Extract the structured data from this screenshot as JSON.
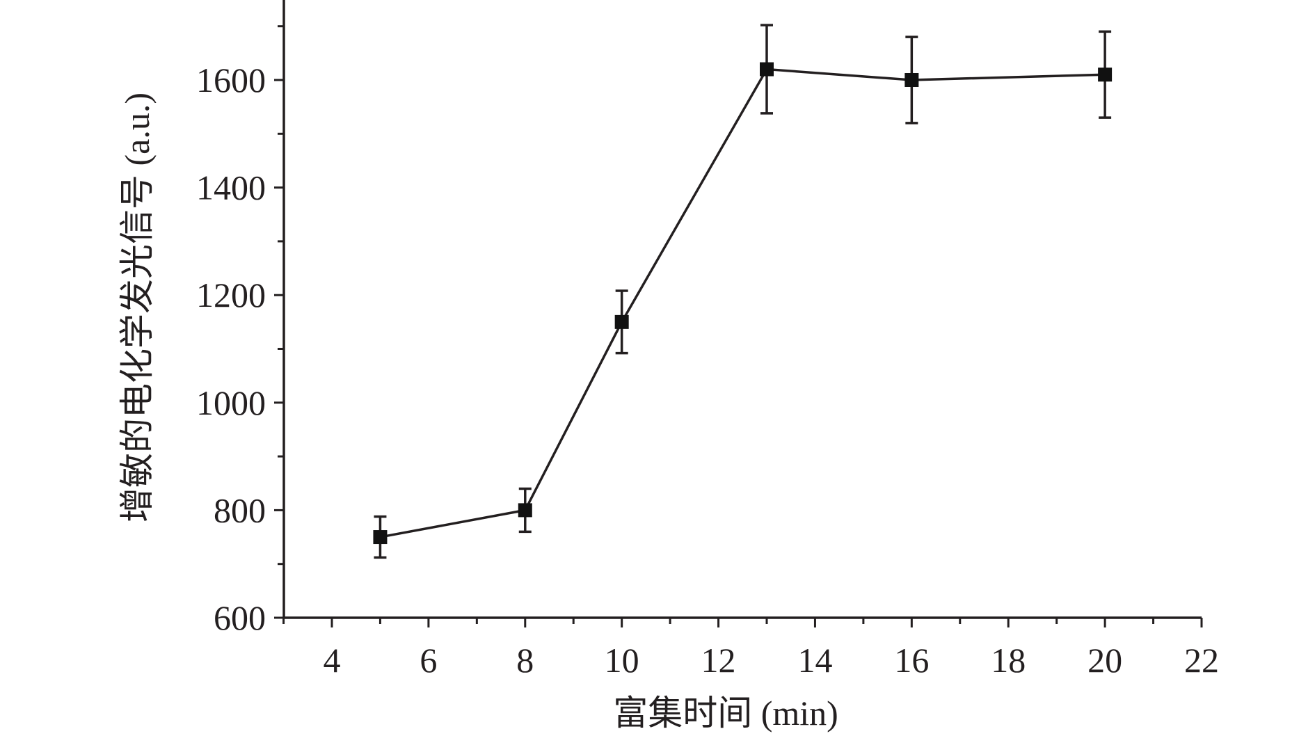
{
  "chart_data": {
    "type": "line",
    "xlabel": "富集时间 (min)",
    "ylabel": "增敏的电化学发光信号 (a.u.)",
    "xlim": [
      3,
      22
    ],
    "ylim": [
      600,
      1750
    ],
    "xticks": [
      4,
      6,
      8,
      10,
      12,
      14,
      16,
      18,
      20,
      22
    ],
    "yticks": [
      600,
      800,
      1000,
      1200,
      1400,
      1600
    ],
    "grid": false,
    "series": [
      {
        "x": [
          5,
          8,
          10,
          13,
          16,
          20
        ],
        "y": [
          750,
          800,
          1150,
          1620,
          1600,
          1610
        ],
        "yerr": [
          38,
          40,
          58,
          82,
          80,
          80
        ],
        "marker": "square",
        "color": "#111111"
      }
    ]
  }
}
